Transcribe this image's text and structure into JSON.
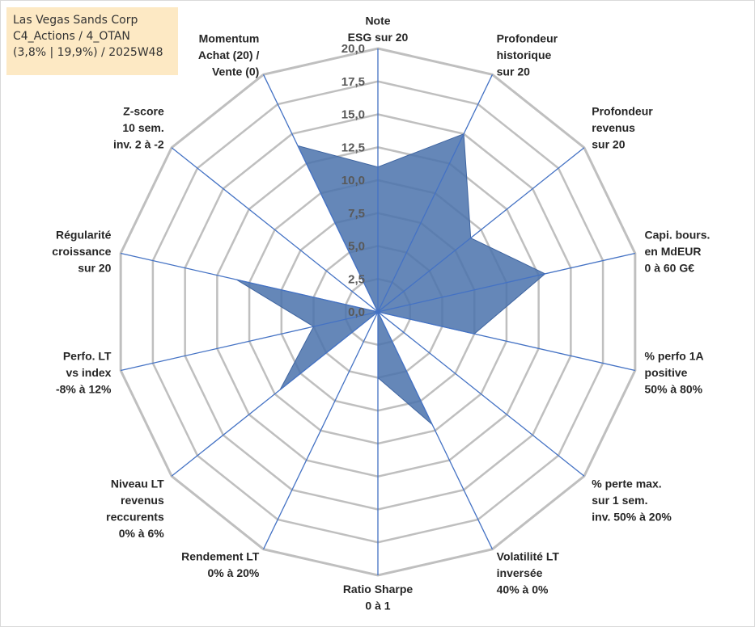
{
  "title_box": {
    "line1": "Las Vegas Sands Corp",
    "line2": "C4_Actions / 4_OTAN",
    "line3": "(3,8% | 19,9%) / 2025W48"
  },
  "chart_data": {
    "type": "radar",
    "rmin": 0,
    "rmax": 20,
    "ticks": [
      "0,0",
      "2,5",
      "5,0",
      "7,5",
      "10,0",
      "12,5",
      "15,0",
      "17,5",
      "20,0"
    ],
    "grid": true,
    "fill_color": "#4a72ab",
    "grid_color": "#bfbfbf",
    "axis_color": "#4472c4",
    "axes": [
      {
        "label": [
          "Note",
          "ESG sur 20"
        ],
        "value": 11.0
      },
      {
        "label": [
          "Profondeur",
          "historique",
          "sur 20"
        ],
        "value": 15.0
      },
      {
        "label": [
          "Profondeur",
          "revenus",
          "sur 20"
        ],
        "value": 9.0
      },
      {
        "label": [
          "Capi. bours.",
          "en MdEUR",
          "0 à 60 G€"
        ],
        "value": 13.0
      },
      {
        "label": [
          "% perfo 1A",
          "positive",
          "50% à 80%"
        ],
        "value": 7.5
      },
      {
        "label": [
          "% perte max.",
          "sur 1 sem.",
          "inv. 50% à 20%"
        ],
        "value": 0.0
      },
      {
        "label": [
          "Volatilité LT",
          "inversée",
          "40% à 0%"
        ],
        "value": 9.5
      },
      {
        "label": [
          "Ratio Sharpe",
          "0 à 1"
        ],
        "value": 5.0
      },
      {
        "label": [
          "Rendement LT",
          "0% à 20%"
        ],
        "value": 0.0
      },
      {
        "label": [
          "Niveau LT",
          "revenus",
          "reccurents",
          "0% à 6%"
        ],
        "value": 9.5
      },
      {
        "label": [
          "Perfo. LT",
          "vs index",
          "-8% à 12%"
        ],
        "value": 5.0
      },
      {
        "label": [
          "Régularité",
          "croissance",
          "sur 20"
        ],
        "value": 11.0
      },
      {
        "label": [
          "Z-score",
          "10 sem.",
          "inv. 2 à -2"
        ],
        "value": 0.0
      },
      {
        "label": [
          "Momentum",
          "Achat (20) /",
          "Vente (0)"
        ],
        "value": 14.0
      }
    ]
  }
}
